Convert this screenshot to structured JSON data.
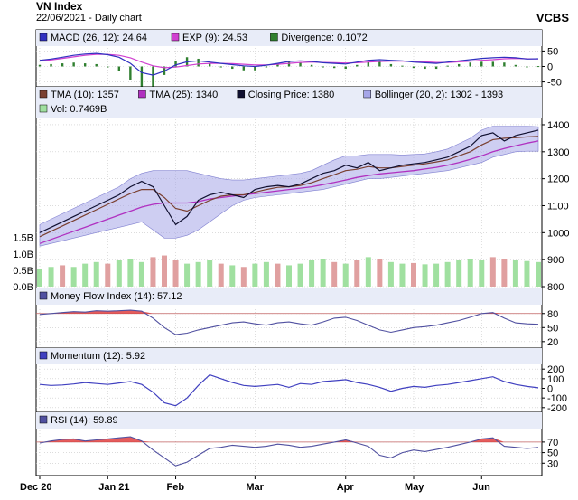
{
  "header": {
    "title": "VN Index",
    "subtitle": "22/06/2021 - Daily chart",
    "brand": "VCBS"
  },
  "colors": {
    "panel_bg": "#ffffff",
    "legend_bg": "#e8ecf8",
    "grid": "#c8c8c8",
    "tma10": "#7a4030",
    "tma25": "#b030c0",
    "close": "#101030",
    "bollinger_fill": "#a6a6e8",
    "vol_up": "#a0e0a0",
    "vol_down": "#e0a0a0",
    "macd": "#3030c0",
    "exp": "#d040d0",
    "divergence": "#308030",
    "mfi": "#5050a0",
    "mfi_fill": "#e04040",
    "momentum": "#4040c0",
    "rsi": "#5050a0",
    "rsi_fill": "#e04040"
  },
  "x_axis": {
    "labels": [
      "Dec 20",
      "Jan 21",
      "Feb",
      "Mar",
      "Apr",
      "May",
      "Jun"
    ]
  },
  "chart_data": [
    {
      "type": "bar",
      "panel": "macd",
      "legend": [
        {
          "label": "MACD (26, 12): 24.64",
          "color": "#3030c0"
        },
        {
          "label": "EXP (9): 24.53",
          "color": "#d040d0"
        },
        {
          "label": "Divergence: 0.1072",
          "color": "#308030"
        }
      ],
      "y_ticks": [
        50,
        0,
        -50
      ],
      "ylim": [
        -60,
        60
      ],
      "series": [
        {
          "key": "macd",
          "values": [
            20,
            24,
            30,
            36,
            40,
            42,
            38,
            30,
            10,
            -20,
            -28,
            -15,
            5,
            15,
            18,
            14,
            10,
            6,
            2,
            0,
            4,
            10,
            16,
            18,
            16,
            12,
            10,
            8,
            14,
            20,
            22,
            20,
            18,
            14,
            12,
            10,
            14,
            18,
            22,
            26,
            28,
            30,
            28,
            24,
            25
          ]
        },
        {
          "key": "exp",
          "values": [
            18,
            21,
            26,
            31,
            36,
            39,
            39,
            36,
            28,
            14,
            2,
            -4,
            -2,
            3,
            8,
            10,
            10,
            9,
            7,
            5,
            5,
            7,
            10,
            13,
            14,
            13,
            12,
            11,
            12,
            14,
            16,
            17,
            17,
            16,
            15,
            13,
            13,
            15,
            17,
            20,
            22,
            25,
            26,
            25,
            24.5
          ]
        }
      ]
    },
    {
      "type": "line",
      "panel": "price",
      "legend": [
        {
          "label": "TMA (10): 1357",
          "color": "#7a4030"
        },
        {
          "label": "TMA (25): 1340",
          "color": "#b030c0"
        },
        {
          "label": "Closing Price: 1380",
          "color": "#101030"
        },
        {
          "label": "Bollinger (20, 2): 1302 - 1393",
          "color": "#a6a6e8"
        },
        {
          "label": "Vol: 0.7469B",
          "color": "#a0e0a0"
        }
      ],
      "y_ticks": [
        1400,
        1300,
        1200,
        1100,
        1000,
        900,
        800
      ],
      "ylim": [
        800,
        1420
      ],
      "vol_ticks": [
        "1.5B",
        "1.0B",
        "0.5B",
        "0.0B"
      ],
      "vol_max": 1.6,
      "series": [
        {
          "key": "close",
          "values": [
            1000,
            1020,
            1040,
            1060,
            1080,
            1100,
            1120,
            1140,
            1170,
            1190,
            1170,
            1100,
            1030,
            1060,
            1120,
            1140,
            1150,
            1140,
            1130,
            1160,
            1170,
            1175,
            1170,
            1180,
            1200,
            1220,
            1230,
            1250,
            1240,
            1260,
            1230,
            1240,
            1250,
            1255,
            1260,
            1270,
            1280,
            1300,
            1320,
            1360,
            1370,
            1340,
            1360,
            1370,
            1380
          ]
        },
        {
          "key": "tma10",
          "values": [
            985,
            1005,
            1025,
            1045,
            1065,
            1085,
            1105,
            1125,
            1145,
            1160,
            1160,
            1130,
            1090,
            1080,
            1100,
            1120,
            1135,
            1140,
            1140,
            1150,
            1160,
            1168,
            1170,
            1175,
            1185,
            1200,
            1215,
            1230,
            1235,
            1245,
            1240,
            1240,
            1245,
            1250,
            1255,
            1262,
            1270,
            1285,
            1300,
            1325,
            1345,
            1350,
            1352,
            1355,
            1357
          ]
        },
        {
          "key": "tma25",
          "values": [
            960,
            975,
            990,
            1005,
            1020,
            1035,
            1050,
            1065,
            1080,
            1095,
            1105,
            1110,
            1110,
            1110,
            1115,
            1125,
            1130,
            1135,
            1140,
            1145,
            1150,
            1155,
            1160,
            1165,
            1170,
            1178,
            1186,
            1195,
            1205,
            1212,
            1218,
            1222,
            1226,
            1230,
            1236,
            1242,
            1250,
            1260,
            1272,
            1285,
            1300,
            1312,
            1322,
            1332,
            1340
          ]
        },
        {
          "key": "boll_up",
          "values": [
            1030,
            1050,
            1070,
            1090,
            1110,
            1130,
            1150,
            1170,
            1200,
            1220,
            1230,
            1230,
            1230,
            1230,
            1220,
            1210,
            1200,
            1195,
            1195,
            1200,
            1205,
            1210,
            1215,
            1220,
            1230,
            1250,
            1270,
            1285,
            1285,
            1290,
            1290,
            1290,
            1288,
            1290,
            1292,
            1300,
            1310,
            1330,
            1350,
            1380,
            1395,
            1395,
            1395,
            1395,
            1393
          ]
        },
        {
          "key": "boll_lo",
          "values": [
            950,
            960,
            970,
            980,
            990,
            1000,
            1010,
            1020,
            1030,
            1040,
            1010,
            980,
            980,
            990,
            1010,
            1040,
            1070,
            1100,
            1120,
            1130,
            1135,
            1140,
            1145,
            1150,
            1155,
            1160,
            1170,
            1180,
            1190,
            1200,
            1200,
            1205,
            1210,
            1215,
            1220,
            1225,
            1230,
            1240,
            1250,
            1260,
            1280,
            1290,
            1300,
            1302,
            1302
          ]
        },
        {
          "key": "vol",
          "values": [
            0.55,
            0.6,
            0.65,
            0.6,
            0.7,
            0.75,
            0.7,
            0.8,
            0.85,
            0.75,
            0.9,
            0.95,
            0.8,
            0.7,
            0.75,
            0.8,
            0.7,
            0.65,
            0.6,
            0.7,
            0.75,
            0.7,
            0.65,
            0.7,
            0.8,
            0.85,
            0.75,
            0.7,
            0.8,
            0.9,
            0.85,
            0.75,
            0.7,
            0.72,
            0.68,
            0.7,
            0.75,
            0.8,
            0.85,
            0.8,
            0.9,
            0.85,
            0.8,
            0.78,
            0.75
          ]
        },
        {
          "key": "vol_dir",
          "values": [
            1,
            1,
            0,
            1,
            1,
            1,
            0,
            1,
            1,
            1,
            0,
            0,
            0,
            1,
            1,
            1,
            0,
            1,
            0,
            1,
            1,
            0,
            1,
            1,
            1,
            1,
            0,
            1,
            0,
            1,
            0,
            1,
            1,
            0,
            1,
            1,
            1,
            1,
            1,
            1,
            0,
            0,
            1,
            1,
            1
          ]
        }
      ]
    },
    {
      "type": "line",
      "panel": "mfi",
      "legend": [
        {
          "label": "Money Flow Index (14): 57.12",
          "color": "#5050a0"
        }
      ],
      "y_ticks": [
        80,
        50,
        20
      ],
      "ylim": [
        10,
        95
      ],
      "threshold": 80,
      "series": [
        {
          "key": "mfi",
          "values": [
            78,
            80,
            82,
            84,
            83,
            86,
            85,
            86,
            87,
            85,
            70,
            50,
            35,
            38,
            45,
            50,
            55,
            60,
            62,
            58,
            55,
            60,
            62,
            58,
            55,
            62,
            70,
            72,
            65,
            55,
            45,
            40,
            45,
            50,
            52,
            55,
            60,
            65,
            72,
            80,
            82,
            70,
            60,
            58,
            57
          ]
        }
      ]
    },
    {
      "type": "line",
      "panel": "momentum",
      "legend": [
        {
          "label": "Momentum (12): 5.92",
          "color": "#4040c0"
        }
      ],
      "y_ticks": [
        200,
        100,
        0,
        -100,
        -200
      ],
      "ylim": [
        -230,
        230
      ],
      "series": [
        {
          "key": "momentum",
          "values": [
            40,
            30,
            35,
            45,
            60,
            50,
            40,
            55,
            70,
            40,
            -40,
            -150,
            -180,
            -100,
            30,
            140,
            100,
            60,
            30,
            20,
            30,
            40,
            10,
            50,
            40,
            70,
            80,
            90,
            60,
            40,
            10,
            -30,
            0,
            20,
            10,
            30,
            40,
            60,
            80,
            100,
            120,
            70,
            40,
            20,
            5.92
          ]
        }
      ]
    },
    {
      "type": "line",
      "panel": "rsi",
      "legend": [
        {
          "label": "RSI (14): 59.89",
          "color": "#5050a0"
        }
      ],
      "y_ticks": [
        70,
        50,
        30
      ],
      "ylim": [
        10,
        92
      ],
      "threshold": 70,
      "series": [
        {
          "key": "rsi",
          "values": [
            68,
            72,
            75,
            76,
            72,
            74,
            76,
            78,
            80,
            72,
            55,
            40,
            25,
            32,
            45,
            58,
            60,
            64,
            62,
            60,
            62,
            66,
            64,
            60,
            62,
            66,
            70,
            74,
            68,
            62,
            45,
            40,
            50,
            55,
            52,
            56,
            60,
            65,
            70,
            76,
            78,
            62,
            60,
            58,
            59.89
          ]
        }
      ]
    }
  ]
}
